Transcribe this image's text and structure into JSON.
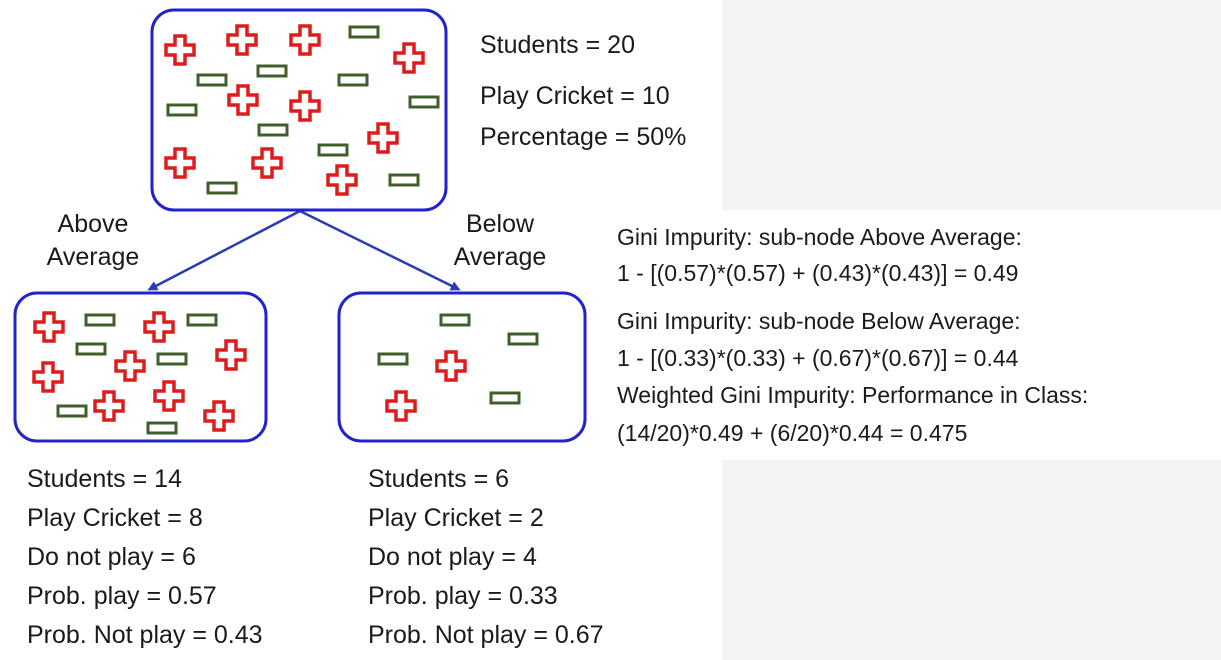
{
  "colors": {
    "node_border": "#2222cc",
    "edge": "#2b3bb5",
    "play_plus": "#dd1c1c",
    "notplay_minus": "#3f5f2a"
  },
  "icons": {
    "play": "plus-icon",
    "not_play": "minus-icon"
  },
  "root": {
    "students": "Students = 20",
    "play_cricket": "Play Cricket = 10",
    "percentage": "Percentage = 50%"
  },
  "branches": {
    "left_label_line1": "Above",
    "left_label_line2": "Average",
    "right_label_line1": "Below",
    "right_label_line2": "Average"
  },
  "left_node": {
    "students": "Students = 14",
    "play_cricket": "Play Cricket = 8",
    "do_not_play": "Do not play = 6",
    "prob_play": "Prob. play = 0.57",
    "prob_not_play": "Prob. Not play = 0.43"
  },
  "right_node": {
    "students": "Students = 6",
    "play_cricket": "Play Cricket = 2",
    "do_not_play": "Do not play = 4",
    "prob_play": "Prob. play = 0.33",
    "prob_not_play": "Prob. Not play = 0.67"
  },
  "gini": {
    "above_title": "Gini Impurity: sub-node Above Average:",
    "above_formula": "1 - [(0.57)*(0.57) + (0.43)*(0.43)] = 0.49",
    "below_title": "Gini Impurity: sub-node Below Average:",
    "below_formula": "1 - [(0.33)*(0.33) + (0.67)*(0.67)] = 0.44",
    "weighted_title": "Weighted Gini Impurity: Performance in Class:",
    "weighted_formula": "(14/20)*0.49 + (6/20)*0.44 = 0.475"
  }
}
